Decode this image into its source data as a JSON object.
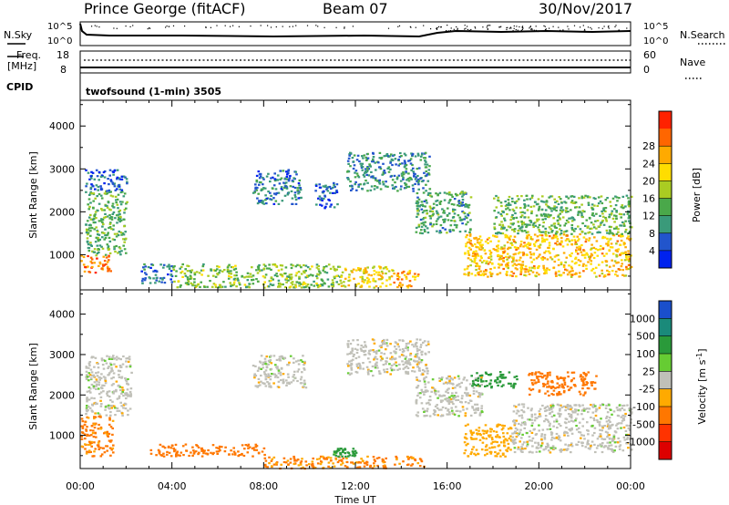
{
  "header": {
    "station": "Prince George (fitACF)",
    "beam": "Beam 07",
    "date": "30/Nov/2017"
  },
  "status_panel": {
    "nsky_label": "N.Sky",
    "nsearch_label": "N.Search",
    "freq_label": "Freq.",
    "freq_unit": "[MHz]",
    "nave_label": "Nave",
    "cpid_label": "CPID",
    "left_ticks_top": [
      "10^5",
      "10^0"
    ],
    "right_ticks_top": [
      "10^5",
      "10^0"
    ],
    "left_ticks_mid": [
      "18",
      "8"
    ],
    "right_ticks_mid": [
      "60",
      "0"
    ],
    "cpid_text": "twofsound (1-min) 3505"
  },
  "chart_data": [
    {
      "type": "heatmap",
      "name": "power",
      "ylabel": "Slant Range [km]",
      "yticks": [
        "1000",
        "2000",
        "3000",
        "4000"
      ],
      "ylim": [
        180,
        4600
      ],
      "xlim_hours": [
        0,
        24
      ],
      "colorbar": {
        "label": "Power [dB]",
        "ticks": [
          "4",
          "8",
          "12",
          "16",
          "20",
          "24",
          "28"
        ],
        "colors": [
          "#0022ee",
          "#2255cc",
          "#3a9a7a",
          "#4aa84a",
          "#aacc22",
          "#ffdd00",
          "#ffaa00",
          "#ff6600",
          "#ff2200"
        ]
      },
      "regions": [
        {
          "t0": 0.0,
          "t1": 1.3,
          "r0": 600,
          "r1": 1000,
          "value": 28
        },
        {
          "t0": 0.2,
          "t1": 2.0,
          "r0": 1000,
          "r1": 2500,
          "value": 14
        },
        {
          "t0": 0.2,
          "t1": 2.0,
          "r0": 2500,
          "r1": 3000,
          "value": 6
        },
        {
          "t0": 2.6,
          "t1": 4.0,
          "r0": 350,
          "r1": 800,
          "value": 8
        },
        {
          "t0": 4.0,
          "t1": 11.3,
          "r0": 250,
          "r1": 800,
          "value": 16
        },
        {
          "t0": 11.3,
          "t1": 13.6,
          "r0": 250,
          "r1": 750,
          "value": 22
        },
        {
          "t0": 13.6,
          "t1": 14.8,
          "r0": 250,
          "r1": 650,
          "value": 26
        },
        {
          "t0": 7.5,
          "t1": 9.6,
          "r0": 2200,
          "r1": 3000,
          "value": 8
        },
        {
          "t0": 10.2,
          "t1": 11.2,
          "r0": 2100,
          "r1": 2700,
          "value": 6
        },
        {
          "t0": 11.6,
          "t1": 15.2,
          "r0": 2500,
          "r1": 3400,
          "value": 10
        },
        {
          "t0": 14.6,
          "t1": 17.0,
          "r0": 1500,
          "r1": 2500,
          "value": 12
        },
        {
          "t0": 16.7,
          "t1": 24.0,
          "r0": 500,
          "r1": 1500,
          "value": 24
        },
        {
          "t0": 18.0,
          "t1": 24.0,
          "r0": 1500,
          "r1": 2400,
          "value": 14
        }
      ]
    },
    {
      "type": "heatmap",
      "name": "velocity",
      "ylabel": "Slant Range [km]",
      "yticks": [
        "1000",
        "2000",
        "3000",
        "4000"
      ],
      "ylim": [
        180,
        4600
      ],
      "xlabel": "Time UT",
      "xticks": [
        "00:00",
        "04:00",
        "08:00",
        "12:00",
        "16:00",
        "20:00",
        "00:00"
      ],
      "xlim_hours": [
        0,
        24
      ],
      "colorbar": {
        "label": "Velocity [m s",
        "label_sup": "-1",
        "label_end": "]",
        "ticks": [
          "1000",
          "500",
          "100",
          "25",
          "-25",
          "-100",
          "-500",
          "-1000"
        ],
        "colors": [
          "#1a4fcc",
          "#1a8a7a",
          "#2a9a3a",
          "#66cc33",
          "#c0c0b8",
          "#ffaa00",
          "#ff7700",
          "#ff3300",
          "#dd0000"
        ]
      },
      "regions": [
        {
          "t0": 0.0,
          "t1": 1.4,
          "r0": 500,
          "r1": 1500,
          "value": -150
        },
        {
          "t0": 0.2,
          "t1": 2.2,
          "r0": 1500,
          "r1": 3000,
          "value": 0
        },
        {
          "t0": 3.0,
          "t1": 8.0,
          "r0": 500,
          "r1": 800,
          "value": -300
        },
        {
          "t0": 8.0,
          "t1": 15.0,
          "r0": 200,
          "r1": 500,
          "value": -120
        },
        {
          "t0": 11.0,
          "t1": 12.0,
          "r0": 500,
          "r1": 700,
          "value": 150
        },
        {
          "t0": 7.5,
          "t1": 9.8,
          "r0": 2200,
          "r1": 3000,
          "value": 0
        },
        {
          "t0": 11.6,
          "t1": 15.2,
          "r0": 2500,
          "r1": 3400,
          "value": 0
        },
        {
          "t0": 14.6,
          "t1": 17.5,
          "r0": 1500,
          "r1": 2500,
          "value": 0
        },
        {
          "t0": 16.7,
          "t1": 18.8,
          "r0": 500,
          "r1": 1300,
          "value": -60
        },
        {
          "t0": 18.8,
          "t1": 24.0,
          "r0": 600,
          "r1": 1800,
          "value": 0
        },
        {
          "t0": 19.5,
          "t1": 22.5,
          "r0": 2000,
          "r1": 2600,
          "value": -250
        },
        {
          "t0": 17.0,
          "t1": 19.0,
          "r0": 2200,
          "r1": 2600,
          "value": 300
        }
      ]
    }
  ]
}
